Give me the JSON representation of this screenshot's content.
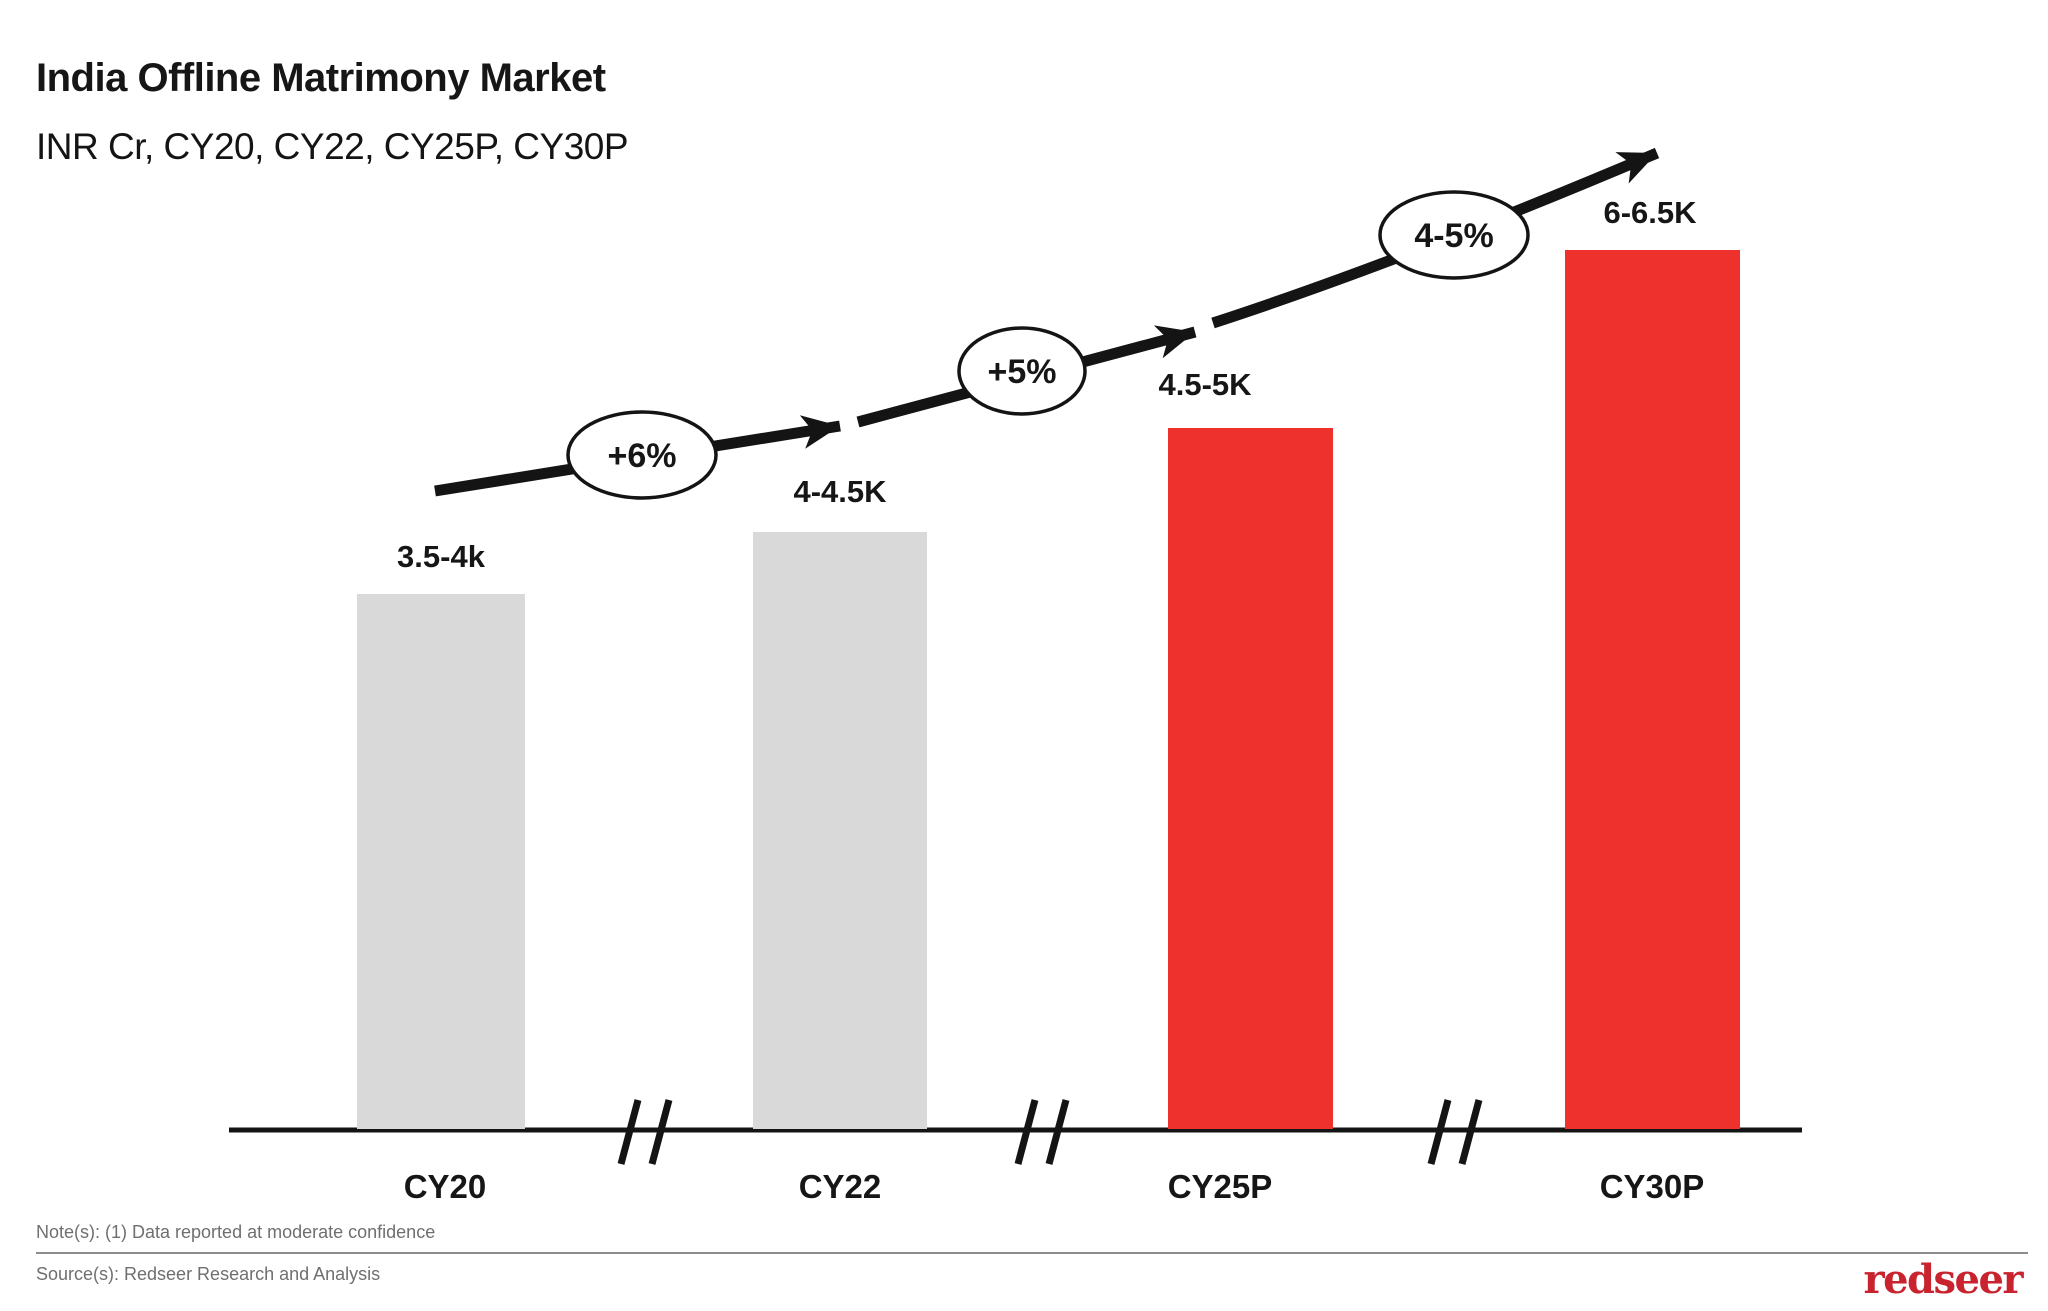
{
  "header": {
    "title": "India Offline Matrimony Market",
    "subtitle": "INR Cr, CY20, CY22, CY25P, CY30P"
  },
  "chart_data": {
    "type": "bar",
    "title": "India Offline Matrimony Market",
    "unit": "INR Cr",
    "categories": [
      "CY20",
      "CY22",
      "CY25P",
      "CY30P"
    ],
    "value_labels": [
      "3.5-4k",
      "4-4.5K",
      "4.5-5K",
      "6-6.5K"
    ],
    "values_numeric_range": [
      [
        3500,
        4000
      ],
      [
        4000,
        4500
      ],
      [
        4500,
        5000
      ],
      [
        6000,
        6500
      ]
    ],
    "series": [
      {
        "name": "Offline matrimony market size (INR Cr)",
        "values": [
          3750,
          4250,
          4750,
          6250
        ]
      }
    ],
    "growth_annotations": [
      {
        "label": "+6%",
        "between": [
          "CY20",
          "CY22"
        ]
      },
      {
        "label": "+5%",
        "between": [
          "CY22",
          "CY25P"
        ]
      },
      {
        "label": "4-5%",
        "between": [
          "CY25P",
          "CY30P"
        ]
      }
    ],
    "bar_colors": [
      "#D9D9D9",
      "#D9D9D9",
      "#EE312C",
      "#EE312C"
    ],
    "axis_breaks": true,
    "trend_arrow": true,
    "ylim": [
      0,
      7000
    ],
    "grid": false,
    "legend": false
  },
  "footer": {
    "note": "Note(s): (1) Data reported at moderate confidence",
    "source": "Source(s): Redseer Research and Analysis",
    "logo_text": "redseer"
  },
  "colors": {
    "bar_gray": "#D9D9D9",
    "bar_red": "#EE312C",
    "ink": "#141414",
    "note_gray": "#6F6F6F",
    "divider_gray": "#8C8C8C",
    "logo_red": "#C8232E",
    "background": "#FFFFFF"
  }
}
